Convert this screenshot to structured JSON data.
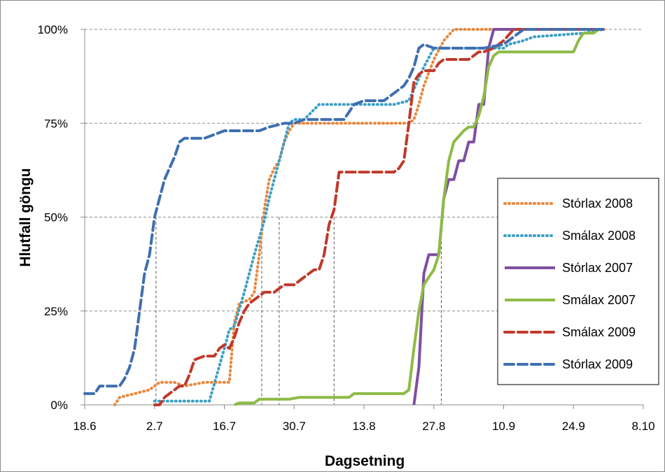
{
  "chart_data": {
    "type": "line",
    "title": "",
    "xlabel": "Dagsetning",
    "ylabel": "Hlutfall göngu",
    "x_ticks": [
      "18.6",
      "2.7",
      "16.7",
      "30.7",
      "13.8",
      "27.8",
      "10.9",
      "24.9",
      "8.10"
    ],
    "x_note": "x values are day offsets from the first tick date (18.6 = day 0)",
    "xlim": [
      0,
      112
    ],
    "y_ticks": [
      "0%",
      "25%",
      "50%",
      "75%",
      "100%"
    ],
    "ylim": [
      0,
      100
    ],
    "grid": "horizontal dashed at 25/50/75/100%",
    "legend_position": "right",
    "series": [
      {
        "name": "Stórlax 2008",
        "color": "#e8873c",
        "dash": "dotted",
        "points": [
          [
            6,
            0
          ],
          [
            7,
            2
          ],
          [
            10,
            3
          ],
          [
            13,
            4
          ],
          [
            15,
            6
          ],
          [
            18,
            6
          ],
          [
            20,
            5
          ],
          [
            24,
            6
          ],
          [
            26,
            6
          ],
          [
            29,
            6
          ],
          [
            30,
            22
          ],
          [
            31,
            27
          ],
          [
            33,
            28
          ],
          [
            34,
            30
          ],
          [
            35,
            40
          ],
          [
            36,
            52
          ],
          [
            37,
            60
          ],
          [
            38,
            63
          ],
          [
            39,
            65
          ],
          [
            40,
            70
          ],
          [
            41,
            73
          ],
          [
            42,
            75
          ],
          [
            45,
            75
          ],
          [
            55,
            75
          ],
          [
            60,
            75
          ],
          [
            63,
            75
          ],
          [
            65,
            75
          ],
          [
            66,
            76
          ],
          [
            67,
            80
          ],
          [
            68,
            85
          ],
          [
            70,
            92
          ],
          [
            72,
            97
          ],
          [
            74,
            100
          ],
          [
            76,
            100
          ],
          [
            80,
            100
          ],
          [
            83,
            100
          ],
          [
            96,
            100
          ],
          [
            104,
            100
          ]
        ]
      },
      {
        "name": "Smálax 2008",
        "color": "#3b9fc3",
        "dash": "dotted",
        "points": [
          [
            14,
            1
          ],
          [
            20,
            1
          ],
          [
            25,
            1
          ],
          [
            28,
            15
          ],
          [
            29,
            20
          ],
          [
            30,
            21
          ],
          [
            32,
            30
          ],
          [
            33,
            35
          ],
          [
            34,
            40
          ],
          [
            36,
            49
          ],
          [
            37,
            55
          ],
          [
            39,
            65
          ],
          [
            40,
            70
          ],
          [
            41,
            75
          ],
          [
            42,
            76
          ],
          [
            44,
            76
          ],
          [
            47,
            80
          ],
          [
            52,
            80
          ],
          [
            57,
            80
          ],
          [
            59,
            80
          ],
          [
            62,
            80
          ],
          [
            65,
            81
          ],
          [
            67,
            87
          ],
          [
            68,
            90
          ],
          [
            70,
            95
          ],
          [
            75,
            95
          ],
          [
            80,
            95
          ],
          [
            84,
            95
          ],
          [
            85,
            96
          ],
          [
            88,
            97
          ],
          [
            90,
            98
          ],
          [
            100,
            99
          ],
          [
            104,
            100
          ]
        ]
      },
      {
        "name": "Stórlax 2007",
        "color": "#7f4f9f",
        "dash": "solid",
        "points": [
          [
            66,
            0
          ],
          [
            67,
            10
          ],
          [
            68,
            35
          ],
          [
            69,
            40
          ],
          [
            71,
            40
          ],
          [
            72,
            55
          ],
          [
            73,
            60
          ],
          [
            74,
            60
          ],
          [
            75,
            65
          ],
          [
            76,
            65
          ],
          [
            77,
            70
          ],
          [
            78,
            70
          ],
          [
            79,
            80
          ],
          [
            80,
            80
          ],
          [
            81,
            95
          ],
          [
            82,
            100
          ],
          [
            87,
            100
          ],
          [
            100,
            100
          ],
          [
            104,
            100
          ]
        ]
      },
      {
        "name": "Smálax 2007",
        "color": "#8dbb45",
        "dash": "solid",
        "points": [
          [
            30,
            0
          ],
          [
            31,
            0.5
          ],
          [
            34,
            0.5
          ],
          [
            35,
            1.5
          ],
          [
            37,
            1.5
          ],
          [
            41,
            1.5
          ],
          [
            43,
            2
          ],
          [
            47,
            2
          ],
          [
            53,
            2
          ],
          [
            54,
            3
          ],
          [
            56,
            3
          ],
          [
            61,
            3
          ],
          [
            64,
            3
          ],
          [
            65,
            4
          ],
          [
            66,
            15
          ],
          [
            67,
            25
          ],
          [
            68,
            32
          ],
          [
            69,
            34
          ],
          [
            70,
            36
          ],
          [
            71,
            40
          ],
          [
            72,
            55
          ],
          [
            73,
            65
          ],
          [
            74,
            70
          ],
          [
            76,
            73
          ],
          [
            77,
            74
          ],
          [
            78,
            74
          ],
          [
            79,
            77
          ],
          [
            80,
            82
          ],
          [
            81,
            90
          ],
          [
            82,
            93
          ],
          [
            83,
            94
          ],
          [
            85,
            94
          ],
          [
            90,
            94
          ],
          [
            95,
            94
          ],
          [
            98,
            94
          ],
          [
            99,
            97
          ],
          [
            100,
            99
          ],
          [
            102,
            99
          ],
          [
            103,
            100
          ]
        ]
      },
      {
        "name": "Smálax 2009",
        "color": "#c0392b",
        "dash": "dashed",
        "points": [
          [
            14,
            0
          ],
          [
            15,
            0
          ],
          [
            16,
            2
          ],
          [
            17,
            3
          ],
          [
            18,
            4
          ],
          [
            19,
            5
          ],
          [
            20,
            5
          ],
          [
            21,
            8
          ],
          [
            22,
            12
          ],
          [
            24,
            13
          ],
          [
            26,
            13
          ],
          [
            27,
            15
          ],
          [
            28,
            16
          ],
          [
            29,
            15
          ],
          [
            30,
            18
          ],
          [
            31,
            22
          ],
          [
            32,
            25
          ],
          [
            33,
            27
          ],
          [
            34,
            28
          ],
          [
            36,
            30
          ],
          [
            38,
            30
          ],
          [
            39,
            31
          ],
          [
            40,
            32
          ],
          [
            42,
            32
          ],
          [
            44,
            34
          ],
          [
            46,
            36
          ],
          [
            47,
            36
          ],
          [
            48,
            40
          ],
          [
            49,
            48
          ],
          [
            50,
            52
          ],
          [
            51,
            62
          ],
          [
            53,
            62
          ],
          [
            56,
            62
          ],
          [
            59,
            62
          ],
          [
            62,
            62
          ],
          [
            63,
            63
          ],
          [
            64,
            65
          ],
          [
            65,
            75
          ],
          [
            66,
            86
          ],
          [
            67,
            88
          ],
          [
            68,
            89
          ],
          [
            69,
            89
          ],
          [
            70,
            89
          ],
          [
            71,
            91
          ],
          [
            72,
            92
          ],
          [
            73,
            92
          ],
          [
            75,
            92
          ],
          [
            77,
            92
          ],
          [
            79,
            94
          ],
          [
            80,
            94
          ],
          [
            82,
            95
          ],
          [
            84,
            97
          ],
          [
            86,
            100
          ],
          [
            92,
            100
          ],
          [
            104,
            100
          ]
        ]
      },
      {
        "name": "Stórlax 2009",
        "color": "#3f6fb0",
        "dash": "dashed",
        "points": [
          [
            0,
            3
          ],
          [
            2,
            3
          ],
          [
            3,
            5
          ],
          [
            5,
            5
          ],
          [
            7,
            5
          ],
          [
            8,
            7
          ],
          [
            9,
            10
          ],
          [
            10,
            15
          ],
          [
            11,
            25
          ],
          [
            12,
            35
          ],
          [
            13,
            40
          ],
          [
            14,
            50
          ],
          [
            15,
            55
          ],
          [
            16,
            60
          ],
          [
            17,
            63
          ],
          [
            18,
            66
          ],
          [
            19,
            70
          ],
          [
            20,
            71
          ],
          [
            22,
            71
          ],
          [
            24,
            71
          ],
          [
            26,
            72
          ],
          [
            28,
            73
          ],
          [
            30,
            73
          ],
          [
            35,
            73
          ],
          [
            37,
            74
          ],
          [
            40,
            75
          ],
          [
            42,
            75
          ],
          [
            44,
            76
          ],
          [
            47,
            76
          ],
          [
            52,
            76
          ],
          [
            54,
            80
          ],
          [
            56,
            81
          ],
          [
            60,
            81
          ],
          [
            62,
            83
          ],
          [
            64,
            85
          ],
          [
            65,
            87
          ],
          [
            66,
            90
          ],
          [
            67,
            95
          ],
          [
            68,
            96
          ],
          [
            70,
            95
          ],
          [
            72,
            95
          ],
          [
            76,
            95
          ],
          [
            80,
            95
          ],
          [
            84,
            96
          ],
          [
            86,
            98
          ],
          [
            88,
            100
          ],
          [
            92,
            100
          ],
          [
            104,
            100
          ]
        ]
      }
    ],
    "median_markers": [
      {
        "x": 14.3,
        "y": 50
      },
      {
        "x": 35.5,
        "y": 50
      },
      {
        "x": 39.0,
        "y": 50
      },
      {
        "x": 50.0,
        "y": 50
      },
      {
        "x": 71.5,
        "y": 50
      }
    ]
  }
}
